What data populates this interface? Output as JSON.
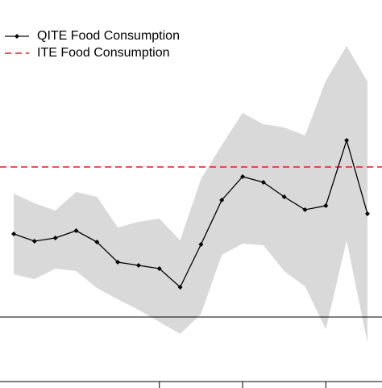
{
  "chart_data": {
    "type": "line",
    "x": [
      1,
      2,
      3,
      4,
      5,
      6,
      7,
      8,
      9,
      10,
      11,
      12,
      13,
      14,
      15,
      16,
      17,
      18
    ],
    "series": [
      {
        "name": "QITE Food Consumption",
        "color": "#000000",
        "values": [
          1.03,
          0.94,
          0.98,
          1.07,
          0.93,
          0.68,
          0.64,
          0.6,
          0.37,
          0.9,
          1.45,
          1.74,
          1.67,
          1.49,
          1.33,
          1.38,
          2.19,
          1.28
        ]
      }
    ],
    "band": {
      "color": "#d9d9d9",
      "upper": [
        1.53,
        1.41,
        1.32,
        1.55,
        1.49,
        1.11,
        1.18,
        1.22,
        0.95,
        1.71,
        2.13,
        2.53,
        2.39,
        2.35,
        2.25,
        2.93,
        3.36,
        2.92
      ],
      "lower": [
        0.53,
        0.47,
        0.6,
        0.57,
        0.36,
        0.22,
        0.09,
        -0.06,
        -0.21,
        0.04,
        0.77,
        0.91,
        0.89,
        0.57,
        0.38,
        -0.15,
        0.95,
        -0.32
      ]
    },
    "hlines": [
      {
        "name": "ITE Food Consumption",
        "value": 1.86,
        "color": "#e41a1c",
        "dashed": true
      },
      {
        "value": 0,
        "color": "#000000",
        "dashed": false
      }
    ],
    "xlim": [
      0.34,
      18.7
    ],
    "ylim": [
      -0.88,
      3.93
    ],
    "xticks": [
      8,
      12,
      16
    ],
    "legend": "top-left"
  }
}
